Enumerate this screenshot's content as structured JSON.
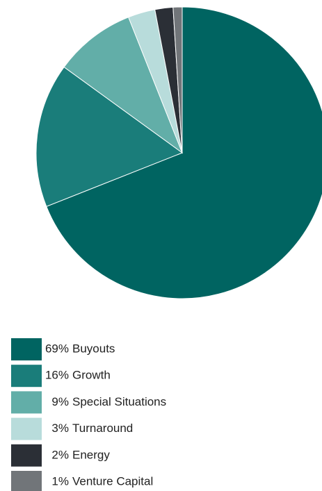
{
  "chart_data": {
    "type": "pie",
    "categories": [
      "Buyouts",
      "Growth",
      "Special Situations",
      "Turnaround",
      "Energy",
      "Venture Capital"
    ],
    "values": [
      69,
      16,
      9,
      3,
      2,
      1
    ],
    "value_labels": [
      "69%",
      "16%",
      "9%",
      "3%",
      "2%",
      "1%"
    ],
    "colors": [
      "#006461",
      "#1a7d7a",
      "#62aea8",
      "#b8dcdb",
      "#2b2f36",
      "#717579"
    ],
    "legend": "bottom"
  }
}
